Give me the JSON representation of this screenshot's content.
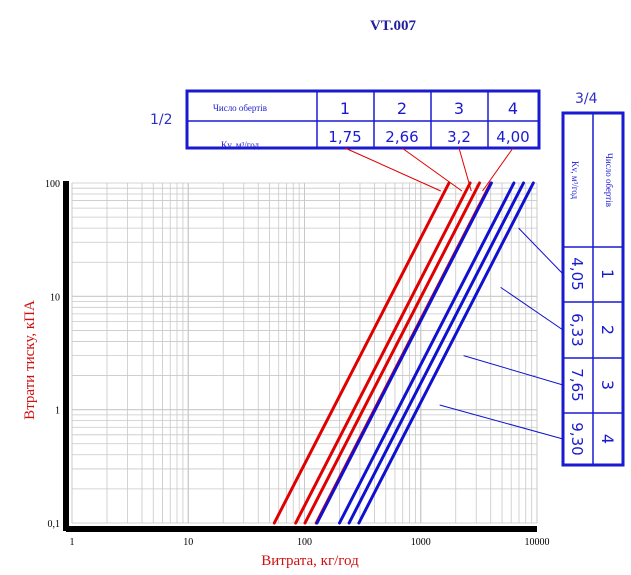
{
  "title": "VT.007",
  "colors": {
    "red": "#e00000",
    "blue": "#1010d0",
    "grid": "#c8c8c8",
    "axis": "#000000",
    "ylabel": "#d01010"
  },
  "chart_data": {
    "type": "line",
    "xlabel": "Витрата, кг/год",
    "ylabel": "Втрати тиску, кПА",
    "xscale": "log",
    "yscale": "log",
    "xlim": [
      1,
      10000
    ],
    "ylim": [
      0.1,
      100
    ],
    "x_ticks": [
      "1",
      "10",
      "100",
      "1000",
      "10000"
    ],
    "y_ticks": [
      "0,1",
      "1",
      "10",
      "100"
    ],
    "grid": true,
    "series": [
      {
        "group": "1/2",
        "label": "1",
        "kv": "1,75",
        "color": "red",
        "points": [
          [
            55,
            0.1
          ],
          [
            1750,
            100
          ]
        ]
      },
      {
        "group": "1/2",
        "label": "2",
        "kv": "2,66",
        "color": "red",
        "points": [
          [
            84,
            0.1
          ],
          [
            2660,
            100
          ]
        ]
      },
      {
        "group": "1/2",
        "label": "3",
        "kv": "3,2",
        "color": "red",
        "points": [
          [
            101,
            0.1
          ],
          [
            3200,
            100
          ]
        ]
      },
      {
        "group": "1/2",
        "label": "4",
        "kv": "4,00",
        "color": "red",
        "points": [
          [
            126,
            0.1
          ],
          [
            4000,
            100
          ]
        ]
      },
      {
        "group": "3/4",
        "label": "1",
        "kv": "4,05",
        "color": "blue",
        "points": [
          [
            128,
            0.1
          ],
          [
            4050,
            100
          ]
        ]
      },
      {
        "group": "3/4",
        "label": "2",
        "kv": "6,33",
        "color": "blue",
        "points": [
          [
            200,
            0.1
          ],
          [
            6330,
            100
          ]
        ]
      },
      {
        "group": "3/4",
        "label": "3",
        "kv": "7,65",
        "color": "blue",
        "points": [
          [
            242,
            0.1
          ],
          [
            7650,
            100
          ]
        ]
      },
      {
        "group": "3/4",
        "label": "4",
        "kv": "9,30",
        "color": "blue",
        "points": [
          [
            294,
            0.1
          ],
          [
            9300,
            100
          ]
        ]
      }
    ]
  },
  "legend_left": {
    "group": "1/2",
    "row1_label": "Число обертів",
    "row2_label": "Kv, м³/год",
    "turns": [
      "1",
      "2",
      "3",
      "4"
    ],
    "kv": [
      "1,75",
      "2,66",
      "3,2",
      "4,00"
    ]
  },
  "legend_right": {
    "group": "3/4",
    "row1_label": "Число обертів",
    "row2_label": "Kv, м³/год",
    "turns": [
      "1",
      "2",
      "3",
      "4"
    ],
    "kv": [
      "4,05",
      "6,33",
      "7,65",
      "9,30"
    ]
  }
}
